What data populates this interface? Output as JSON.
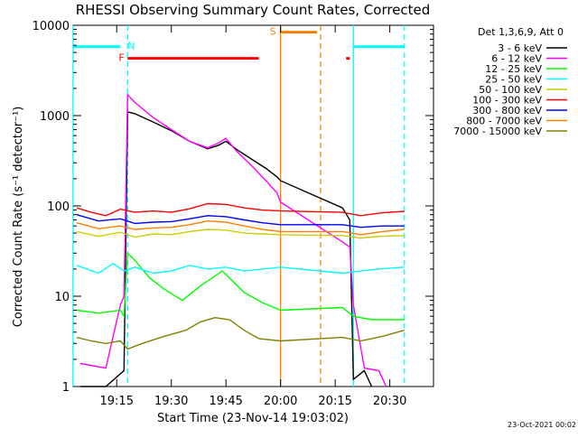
{
  "chart_data": {
    "type": "line",
    "title": "RHESSI Observing Summary Count Rates, Corrected",
    "xlabel": "Start Time (23-Nov-14 19:03:02)",
    "ylabel": "Corrected Count Rate (s⁻¹ detector⁻¹)",
    "yscale": "log",
    "ylim": [
      1,
      10000
    ],
    "xlim": [
      "19:03:02",
      "20:42:00"
    ],
    "x_ticks": [
      "19:15",
      "19:30",
      "19:45",
      "20:00",
      "20:15",
      "20:30"
    ],
    "y_ticks": [
      "1",
      "10",
      "100",
      "1000",
      "10000"
    ],
    "grid": false,
    "legend": {
      "position": "top-right",
      "header": "Det 1,3,6,9, Att 0"
    },
    "series": [
      {
        "name": "3 - 6 keV",
        "color": "#000000",
        "points": [
          [
            "19:05",
            0.8
          ],
          [
            "19:12",
            0.9
          ],
          [
            "19:17",
            1.5
          ],
          [
            "19:18",
            1100
          ],
          [
            "19:20",
            1050
          ],
          [
            "19:25",
            850
          ],
          [
            "19:30",
            680
          ],
          [
            "19:35",
            520
          ],
          [
            "19:40",
            430
          ],
          [
            "19:43",
            470
          ],
          [
            "19:45",
            520
          ],
          [
            "19:48",
            420
          ],
          [
            "19:52",
            330
          ],
          [
            "19:56",
            260
          ],
          [
            "19:59",
            210
          ],
          [
            "20:00",
            190
          ],
          [
            "20:17",
            95
          ],
          [
            "20:19",
            70
          ],
          [
            "20:20",
            1.2
          ],
          [
            "20:23",
            1.5
          ],
          [
            "20:25",
            0.8
          ]
        ]
      },
      {
        "name": "6 - 12 keV",
        "color": "#ff00ff",
        "points": [
          [
            "19:05",
            1.8
          ],
          [
            "19:12",
            1.6
          ],
          [
            "19:16",
            8
          ],
          [
            "19:17",
            10
          ],
          [
            "19:18",
            1700
          ],
          [
            "19:20",
            1400
          ],
          [
            "19:25",
            950
          ],
          [
            "19:30",
            700
          ],
          [
            "19:35",
            520
          ],
          [
            "19:40",
            440
          ],
          [
            "19:43",
            500
          ],
          [
            "19:45",
            560
          ],
          [
            "19:48",
            400
          ],
          [
            "19:52",
            280
          ],
          [
            "19:56",
            190
          ],
          [
            "19:59",
            140
          ],
          [
            "20:00",
            110
          ],
          [
            "20:17",
            40
          ],
          [
            "20:19",
            35
          ],
          [
            "20:20",
            8
          ],
          [
            "20:23",
            1.6
          ],
          [
            "20:27",
            1.5
          ],
          [
            "20:29",
            0.8
          ]
        ]
      },
      {
        "name": "12 - 25 keV",
        "color": "#00ff00",
        "points": [
          [
            "19:04",
            7
          ],
          [
            "19:10",
            6.5
          ],
          [
            "19:16",
            7
          ],
          [
            "19:17",
            6
          ],
          [
            "19:18",
            30
          ],
          [
            "19:20",
            25
          ],
          [
            "19:24",
            16
          ],
          [
            "19:28",
            12
          ],
          [
            "19:33",
            9
          ],
          [
            "19:38",
            13
          ],
          [
            "19:44",
            19
          ],
          [
            "19:50",
            11
          ],
          [
            "19:55",
            8.5
          ],
          [
            "20:00",
            7
          ],
          [
            "20:17",
            7.5
          ],
          [
            "20:20",
            6
          ],
          [
            "20:25",
            5.5
          ],
          [
            "20:30",
            5.5
          ],
          [
            "20:34",
            5.5
          ]
        ]
      },
      {
        "name": "25 - 50 keV",
        "color": "#00ffff",
        "points": [
          [
            "19:04",
            22
          ],
          [
            "19:10",
            18
          ],
          [
            "19:14",
            23
          ],
          [
            "19:17",
            19
          ],
          [
            "19:20",
            21
          ],
          [
            "19:25",
            18
          ],
          [
            "19:30",
            19
          ],
          [
            "19:35",
            22
          ],
          [
            "19:40",
            20
          ],
          [
            "19:45",
            21
          ],
          [
            "19:50",
            19
          ],
          [
            "19:55",
            20
          ],
          [
            "20:00",
            21
          ],
          [
            "20:17",
            18
          ],
          [
            "20:22",
            19
          ],
          [
            "20:27",
            20
          ],
          [
            "20:34",
            21
          ]
        ]
      },
      {
        "name": "50 - 100 keV",
        "color": "#cccc00",
        "points": [
          [
            "19:04",
            52
          ],
          [
            "19:10",
            46
          ],
          [
            "19:16",
            51
          ],
          [
            "19:20",
            45
          ],
          [
            "19:25",
            49
          ],
          [
            "19:30",
            48
          ],
          [
            "19:35",
            52
          ],
          [
            "19:40",
            55
          ],
          [
            "19:45",
            54
          ],
          [
            "19:50",
            50
          ],
          [
            "19:55",
            49
          ],
          [
            "20:00",
            48
          ],
          [
            "20:17",
            47
          ],
          [
            "20:22",
            44
          ],
          [
            "20:27",
            46
          ],
          [
            "20:34",
            47
          ]
        ]
      },
      {
        "name": "100 - 300 keV",
        "color": "#ff0000",
        "points": [
          [
            "19:04",
            95
          ],
          [
            "19:08",
            85
          ],
          [
            "19:12",
            78
          ],
          [
            "19:16",
            92
          ],
          [
            "19:20",
            85
          ],
          [
            "19:25",
            88
          ],
          [
            "19:30",
            85
          ],
          [
            "19:35",
            93
          ],
          [
            "19:40",
            106
          ],
          [
            "19:45",
            104
          ],
          [
            "19:50",
            95
          ],
          [
            "19:55",
            90
          ],
          [
            "20:00",
            88
          ],
          [
            "20:17",
            85
          ],
          [
            "20:22",
            78
          ],
          [
            "20:28",
            84
          ],
          [
            "20:34",
            87
          ]
        ]
      },
      {
        "name": "300 - 800 keV",
        "color": "#0000ff",
        "points": [
          [
            "19:04",
            80
          ],
          [
            "19:10",
            68
          ],
          [
            "19:16",
            72
          ],
          [
            "19:20",
            64
          ],
          [
            "19:25",
            66
          ],
          [
            "19:30",
            67
          ],
          [
            "19:35",
            72
          ],
          [
            "19:40",
            78
          ],
          [
            "19:45",
            76
          ],
          [
            "19:50",
            70
          ],
          [
            "19:55",
            65
          ],
          [
            "20:00",
            62
          ],
          [
            "20:17",
            62
          ],
          [
            "20:22",
            58
          ],
          [
            "20:28",
            60
          ],
          [
            "20:34",
            60
          ]
        ]
      },
      {
        "name": "800 - 7000 keV",
        "color": "#ff8000",
        "points": [
          [
            "19:04",
            65
          ],
          [
            "19:10",
            56
          ],
          [
            "19:16",
            60
          ],
          [
            "19:20",
            55
          ],
          [
            "19:25",
            57
          ],
          [
            "19:30",
            58
          ],
          [
            "19:35",
            62
          ],
          [
            "19:40",
            68
          ],
          [
            "19:45",
            66
          ],
          [
            "19:50",
            60
          ],
          [
            "19:55",
            55
          ],
          [
            "20:00",
            52
          ],
          [
            "20:17",
            52
          ],
          [
            "20:22",
            48
          ],
          [
            "20:28",
            52
          ],
          [
            "20:34",
            55
          ]
        ]
      },
      {
        "name": "7000 - 15000 keV",
        "color": "#808000",
        "points": [
          [
            "19:04",
            3.5
          ],
          [
            "19:08",
            3.2
          ],
          [
            "19:12",
            3.0
          ],
          [
            "19:16",
            3.2
          ],
          [
            "19:18",
            2.6
          ],
          [
            "19:22",
            3.0
          ],
          [
            "19:28",
            3.6
          ],
          [
            "19:34",
            4.2
          ],
          [
            "19:38",
            5.2
          ],
          [
            "19:42",
            5.8
          ],
          [
            "19:46",
            5.5
          ],
          [
            "19:50",
            4.2
          ],
          [
            "19:54",
            3.4
          ],
          [
            "20:00",
            3.2
          ],
          [
            "20:17",
            3.5
          ],
          [
            "20:22",
            3.2
          ],
          [
            "20:28",
            3.6
          ],
          [
            "20:34",
            4.2
          ]
        ]
      }
    ],
    "annotations": [
      {
        "label": "N",
        "color": "#00ffff",
        "segments": [
          [
            "19:03",
            "19:16"
          ],
          [
            "20:20",
            "20:34"
          ]
        ],
        "level": 5800
      },
      {
        "label": "F",
        "color": "#ff0000",
        "segments": [
          [
            "19:18",
            "19:54"
          ],
          [
            "20:18",
            "20:19"
          ]
        ],
        "level": 4300
      },
      {
        "label": "S",
        "color": "#ff8000",
        "segments": [
          [
            "20:00",
            "20:10"
          ]
        ],
        "level": 8400
      }
    ],
    "vlines": [
      {
        "at": "19:03",
        "color": "#00ffff",
        "style": "solid"
      },
      {
        "at": "19:18",
        "color": "#00ffff",
        "style": "dashed"
      },
      {
        "at": "20:00",
        "color": "#ff8000",
        "style": "solid"
      },
      {
        "at": "20:11",
        "color": "#ff8000",
        "style": "dashed"
      },
      {
        "at": "20:20",
        "color": "#00ffff",
        "style": "solid"
      },
      {
        "at": "20:34",
        "color": "#00ffff",
        "style": "dashed"
      }
    ]
  },
  "footer": {
    "date": "23-Oct-2021 00:02"
  }
}
